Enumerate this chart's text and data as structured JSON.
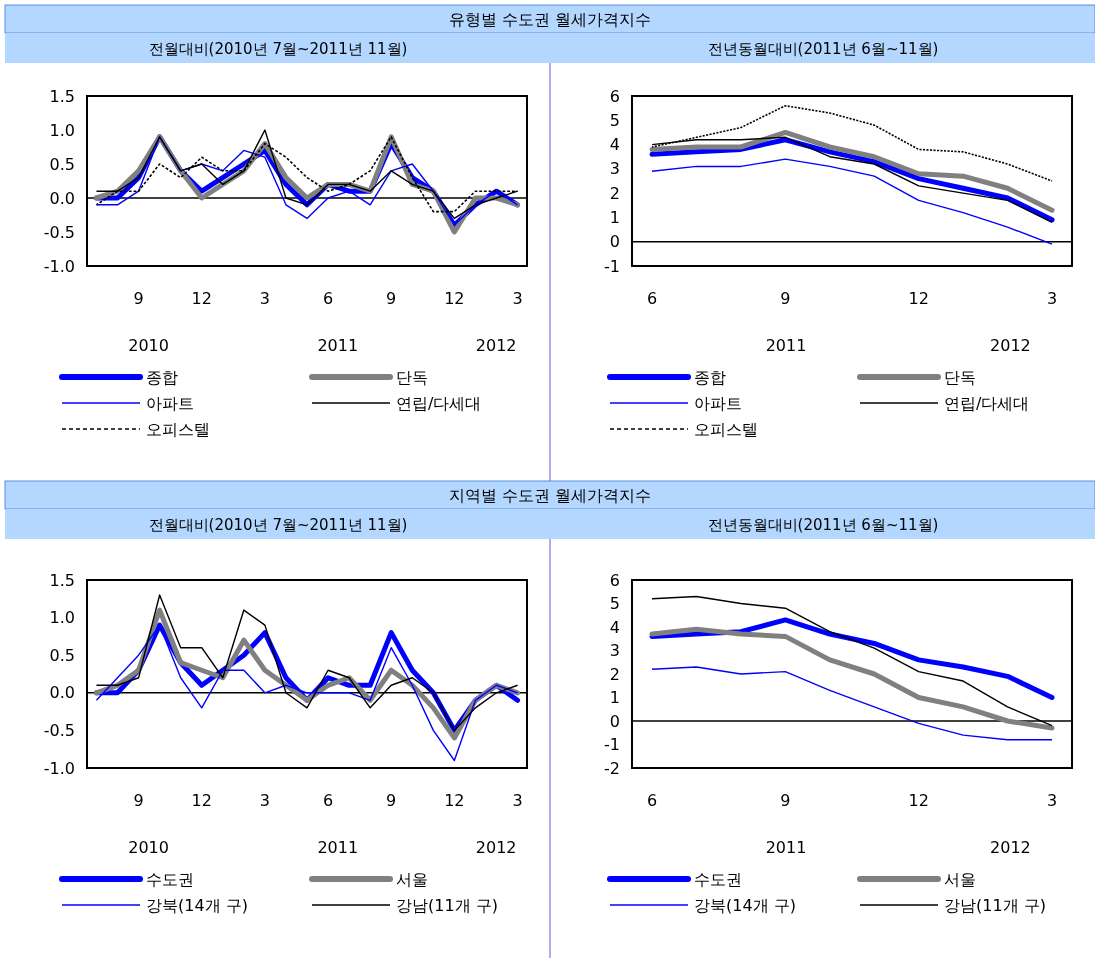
{
  "chart_data": [
    {
      "type": "line",
      "title": "유형별 수도권 월세가격지수",
      "subtitle": "전월대비(2010년 7월~2011년 11월)",
      "categories": [
        null,
        null,
        "9",
        null,
        null,
        "12",
        null,
        null,
        "3",
        null,
        null,
        "6",
        null,
        null,
        "9",
        null,
        null,
        "12",
        null,
        null,
        "3"
      ],
      "ylim": [
        -1.0,
        1.5
      ],
      "yticks": [
        {
          "value": -1,
          "label": "-1.0"
        },
        {
          "value": -0.5,
          "label": "-0.5"
        },
        {
          "value": 0,
          "label": "0.0"
        },
        {
          "value": 0.5,
          "label": "0.5"
        },
        {
          "value": 1,
          "label": "1.0"
        },
        {
          "value": 1.5,
          "label": "1.5"
        }
      ],
      "grid": false,
      "legend": "bottom",
      "annotations": [
        "2010",
        "2011",
        "2012"
      ],
      "ref_lines": [
        {
          "axis": "y",
          "value": 0,
          "color": "#000000"
        }
      ],
      "series": [
        {
          "name": "종합",
          "color": "#0000ff",
          "values": [
            0.0,
            0.0,
            0.3,
            0.9,
            0.4,
            0.1,
            0.3,
            0.5,
            0.7,
            0.2,
            -0.1,
            0.2,
            0.1,
            0.1,
            0.8,
            0.3,
            0.1,
            -0.4,
            -0.1,
            0.1,
            -0.1
          ]
        },
        {
          "name": "단독",
          "color": "#808080",
          "values": [
            0.0,
            0.1,
            0.4,
            0.9,
            0.4,
            0.0,
            0.2,
            0.4,
            0.8,
            0.3,
            0.0,
            0.2,
            0.2,
            0.1,
            0.9,
            0.2,
            0.1,
            -0.5,
            0.0,
            0.0,
            -0.1
          ]
        },
        {
          "name": "아파트",
          "color": "#0000ff",
          "values": [
            -0.1,
            -0.1,
            0.1,
            0.9,
            0.4,
            0.5,
            0.4,
            0.7,
            0.6,
            -0.1,
            -0.3,
            0.0,
            0.1,
            -0.1,
            0.4,
            0.5,
            0.1,
            -0.4,
            -0.1,
            0.1,
            -0.1
          ]
        },
        {
          "name": "연립/다세대",
          "color": "#000000",
          "values": [
            0.1,
            0.1,
            0.3,
            0.9,
            0.4,
            0.5,
            0.2,
            0.4,
            1.0,
            0.0,
            -0.1,
            0.2,
            0.2,
            0.1,
            0.4,
            0.2,
            0.1,
            -0.3,
            -0.1,
            0.0,
            0.1
          ]
        },
        {
          "name": "오피스텔",
          "color": "#000000",
          "line_style": "dashed",
          "values": [
            -0.1,
            0.1,
            0.1,
            0.5,
            0.3,
            0.6,
            0.4,
            0.4,
            0.8,
            0.6,
            0.3,
            0.1,
            0.2,
            0.4,
            0.9,
            0.3,
            -0.2,
            -0.2,
            0.1,
            0.1,
            0.1
          ]
        }
      ]
    },
    {
      "type": "line",
      "subtitle": "전년동월대비(2011년 6월~11월)",
      "categories": [
        "6",
        null,
        null,
        "9",
        null,
        null,
        "12",
        null,
        null,
        "3"
      ],
      "ylim": [
        -1,
        6
      ],
      "yticks": [
        -1,
        0,
        1,
        2,
        3,
        4,
        5,
        6
      ],
      "grid": false,
      "legend": "bottom",
      "annotations": [
        "2011",
        "2012"
      ],
      "ref_lines": [
        {
          "axis": "y",
          "value": 0,
          "color": "#000000"
        }
      ],
      "series": [
        {
          "name": "종합",
          "color": "#0000ff",
          "values": [
            3.6,
            3.7,
            3.8,
            4.2,
            3.7,
            3.3,
            2.6,
            2.2,
            1.8,
            0.9
          ]
        },
        {
          "name": "단독",
          "color": "#808080",
          "values": [
            3.8,
            3.9,
            3.9,
            4.5,
            3.9,
            3.5,
            2.8,
            2.7,
            2.2,
            1.3
          ]
        },
        {
          "name": "아파트",
          "color": "#0000ff",
          "values": [
            2.9,
            3.1,
            3.1,
            3.4,
            3.1,
            2.7,
            1.7,
            1.2,
            0.6,
            -0.1
          ]
        },
        {
          "name": "연립/다세대",
          "color": "#000000",
          "values": [
            4.0,
            4.2,
            4.2,
            4.3,
            3.5,
            3.2,
            2.3,
            2.0,
            1.7,
            0.8
          ]
        },
        {
          "name": "오피스텔",
          "color": "#000000",
          "line_style": "dashed",
          "values": [
            3.9,
            4.3,
            4.7,
            5.6,
            5.3,
            4.8,
            3.8,
            3.7,
            3.2,
            2.5
          ]
        }
      ]
    },
    {
      "type": "line",
      "title": "지역별 수도권 월세가격지수",
      "subtitle": "전월대비(2010년 7월~2011년 11월)",
      "categories": [
        null,
        null,
        "9",
        null,
        null,
        "12",
        null,
        null,
        "3",
        null,
        null,
        "6",
        null,
        null,
        "9",
        null,
        null,
        "12",
        null,
        null,
        "3"
      ],
      "ylim": [
        -1.0,
        1.5
      ],
      "yticks": [
        {
          "value": -1,
          "label": "-1.0"
        },
        {
          "value": -0.5,
          "label": "-0.5"
        },
        {
          "value": 0,
          "label": "0.0"
        },
        {
          "value": 0.5,
          "label": "0.5"
        },
        {
          "value": 1,
          "label": "1.0"
        },
        {
          "value": 1.5,
          "label": "1.5"
        }
      ],
      "grid": false,
      "legend": "bottom",
      "annotations": [
        "2010",
        "2011",
        "2012"
      ],
      "ref_lines": [
        {
          "axis": "y",
          "value": 0,
          "color": "#000000"
        }
      ],
      "series": [
        {
          "name": "수도권",
          "color": "#0000ff",
          "values": [
            0.0,
            0.0,
            0.3,
            0.9,
            0.4,
            0.1,
            0.3,
            0.5,
            0.8,
            0.2,
            -0.1,
            0.2,
            0.1,
            0.1,
            0.8,
            0.3,
            0.0,
            -0.5,
            -0.1,
            0.1,
            -0.1
          ]
        },
        {
          "name": "서울",
          "color": "#808080",
          "values": [
            0.0,
            0.1,
            0.3,
            1.1,
            0.4,
            0.3,
            0.2,
            0.7,
            0.3,
            0.1,
            -0.1,
            0.1,
            0.2,
            -0.1,
            0.3,
            0.1,
            -0.2,
            -0.6,
            -0.1,
            0.1,
            0.0
          ]
        },
        {
          "name": "강북(14개 구)",
          "color": "#0000ff",
          "values": [
            -0.1,
            0.2,
            0.5,
            0.9,
            0.2,
            -0.2,
            0.3,
            0.3,
            0.0,
            0.1,
            0.0,
            0.0,
            0.0,
            -0.1,
            0.6,
            0.1,
            -0.5,
            -0.9,
            -0.1,
            0.1,
            0.0
          ]
        },
        {
          "name": "강남(11개 구)",
          "color": "#000000",
          "values": [
            0.1,
            0.1,
            0.2,
            1.3,
            0.6,
            0.6,
            0.2,
            1.1,
            0.9,
            0.0,
            -0.2,
            0.3,
            0.2,
            -0.2,
            0.1,
            0.2,
            0.0,
            -0.5,
            -0.2,
            0.0,
            0.1
          ]
        }
      ]
    },
    {
      "type": "line",
      "subtitle": "전년동월대비(2011년 6월~11월)",
      "categories": [
        "6",
        null,
        null,
        "9",
        null,
        null,
        "12",
        null,
        null,
        "3"
      ],
      "ylim": [
        -2,
        6
      ],
      "yticks": [
        -2,
        -1,
        0,
        1,
        2,
        3,
        4,
        5,
        6
      ],
      "grid": false,
      "legend": "bottom",
      "annotations": [
        "2011",
        "2012"
      ],
      "ref_lines": [
        {
          "axis": "y",
          "value": 0,
          "color": "#000000"
        }
      ],
      "series": [
        {
          "name": "수도권",
          "color": "#0000ff",
          "values": [
            3.6,
            3.7,
            3.8,
            4.3,
            3.7,
            3.3,
            2.6,
            2.3,
            1.9,
            1.0
          ]
        },
        {
          "name": "서울",
          "color": "#808080",
          "values": [
            3.7,
            3.9,
            3.7,
            3.6,
            2.6,
            2.0,
            1.0,
            0.6,
            0.0,
            -0.3
          ]
        },
        {
          "name": "강북(14개 구)",
          "color": "#0000ff",
          "values": [
            2.2,
            2.3,
            2.0,
            2.1,
            1.3,
            0.6,
            -0.1,
            -0.6,
            -0.8,
            -0.8
          ]
        },
        {
          "name": "강남(11개 구)",
          "color": "#000000",
          "values": [
            5.2,
            5.3,
            5.0,
            4.8,
            3.8,
            3.1,
            2.1,
            1.7,
            0.6,
            -0.2
          ]
        }
      ]
    }
  ]
}
